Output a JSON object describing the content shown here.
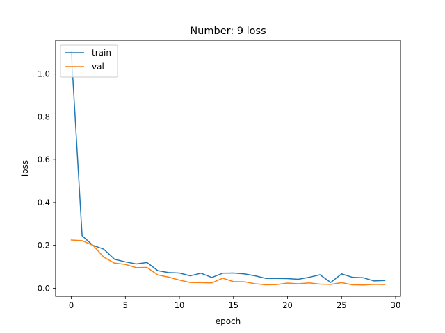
{
  "chart_data": {
    "type": "line",
    "title": "Number: 9 loss",
    "xlabel": "epoch",
    "ylabel": "loss",
    "xlim": [
      -1.45,
      30.45
    ],
    "ylim": [
      -0.0375,
      1.1575
    ],
    "xticks": [
      0,
      5,
      10,
      15,
      20,
      25,
      30
    ],
    "yticks": [
      0.0,
      0.2,
      0.4,
      0.6,
      0.8,
      1.0
    ],
    "xtick_labels": [
      "0",
      "5",
      "10",
      "15",
      "20",
      "25",
      "30"
    ],
    "ytick_labels": [
      "0.0",
      "0.2",
      "0.4",
      "0.6",
      "0.8",
      "1.0"
    ],
    "grid": false,
    "legend": "top-left",
    "x": [
      0,
      1,
      2,
      3,
      4,
      5,
      6,
      7,
      8,
      9,
      10,
      11,
      12,
      13,
      14,
      15,
      16,
      17,
      18,
      19,
      20,
      21,
      22,
      23,
      24,
      25,
      26,
      27,
      28,
      29
    ],
    "series": [
      {
        "name": "train",
        "color": "#1f77b4",
        "values": [
          1.103,
          0.245,
          0.2,
          0.182,
          0.135,
          0.123,
          0.113,
          0.12,
          0.082,
          0.073,
          0.071,
          0.058,
          0.07,
          0.05,
          0.07,
          0.071,
          0.067,
          0.058,
          0.046,
          0.046,
          0.045,
          0.042,
          0.051,
          0.063,
          0.027,
          0.067,
          0.051,
          0.049,
          0.034,
          0.036
        ]
      },
      {
        "name": "val",
        "color": "#ff7f0e",
        "values": [
          0.225,
          0.222,
          0.2,
          0.145,
          0.117,
          0.111,
          0.096,
          0.097,
          0.062,
          0.052,
          0.038,
          0.027,
          0.026,
          0.025,
          0.047,
          0.031,
          0.03,
          0.021,
          0.016,
          0.017,
          0.024,
          0.021,
          0.025,
          0.019,
          0.018,
          0.026,
          0.016,
          0.015,
          0.018,
          0.017
        ]
      }
    ]
  }
}
